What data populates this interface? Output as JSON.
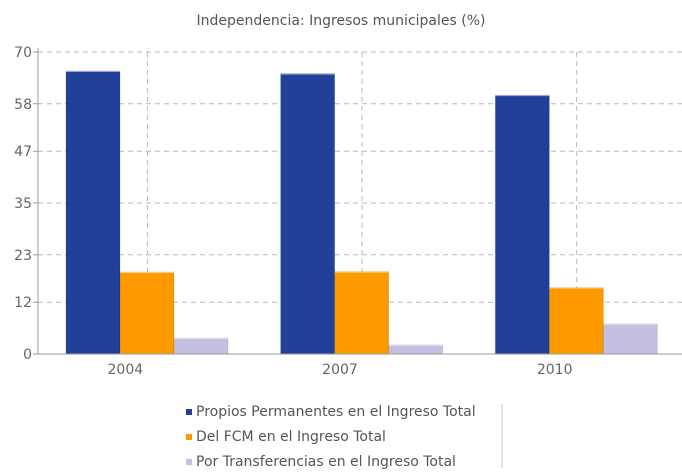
{
  "chart_data": {
    "type": "bar",
    "title": "Independencia: Ingresos municipales (%)",
    "xlabel": "",
    "ylabel": "",
    "categories": [
      "2004",
      "2007",
      "2010"
    ],
    "ylim": [
      0,
      70
    ],
    "yticks": [
      "0",
      "12",
      "23",
      "35",
      "47",
      "58",
      "70"
    ],
    "grid": true,
    "legend_position": "bottom",
    "series": [
      {
        "name": "Propios Permanentes en el Ingreso Total",
        "color": "#21409a",
        "values": [
          65.6,
          65.0,
          60.0
        ]
      },
      {
        "name": "Del FCM en el Ingreso Total",
        "color": "#ff9900",
        "values": [
          19.0,
          19.1,
          15.4
        ]
      },
      {
        "name": "Por Transferencias en el Ingreso Total",
        "color": "#c4c0e0",
        "values": [
          3.7,
          2.1,
          7.0
        ]
      }
    ]
  }
}
